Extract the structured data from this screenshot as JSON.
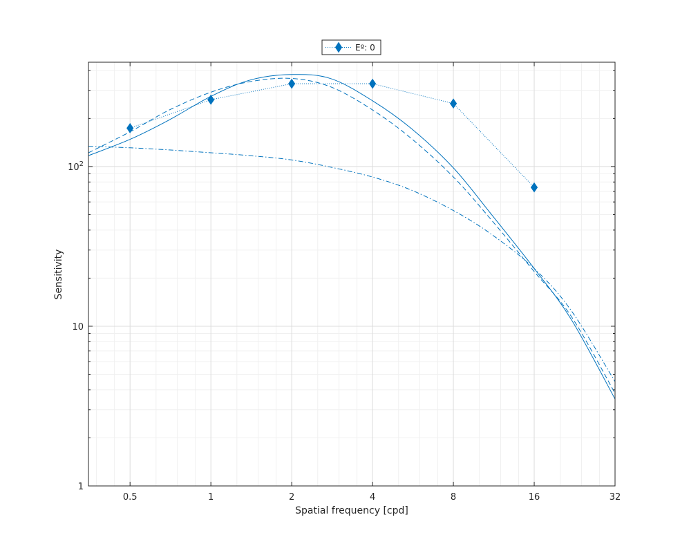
{
  "chart_data": {
    "type": "line",
    "xlabel": "Spatial frequency [cpd]",
    "ylabel": "Sensitivity",
    "x_scale": "log2",
    "y_scale": "log10",
    "xlim": [
      0.35,
      32
    ],
    "ylim": [
      1,
      450
    ],
    "x_ticks": [
      0.5,
      1,
      2,
      4,
      8,
      16,
      32
    ],
    "x_tick_labels": [
      "0.5",
      "1",
      "2",
      "4",
      "8",
      "16",
      "32"
    ],
    "y_ticks": [
      1,
      10,
      100
    ],
    "y_tick_labels": [
      "1",
      "10",
      "10^2"
    ],
    "grid": true,
    "minor_grid": true,
    "legend": {
      "placement": "top-center-outside",
      "entries": [
        "Eº: 0"
      ]
    },
    "series": [
      {
        "name": "Eº: 0",
        "style": "dotted",
        "marker": "diamond",
        "color": "#0072BD",
        "x": [
          0.5,
          1,
          2,
          4,
          8,
          16
        ],
        "y": [
          174,
          262,
          330,
          330,
          248,
          74
        ]
      },
      {
        "style": "solid",
        "color": "#0072BD",
        "x": [
          0.35,
          0.5,
          0.7,
          1,
          1.4,
          2,
          2.8,
          4,
          5.6,
          8,
          11,
          16,
          22,
          32
        ],
        "y": [
          117,
          148,
          196,
          275,
          348,
          377,
          355,
          258,
          172,
          98,
          51,
          23,
          11,
          3.5
        ]
      },
      {
        "style": "dashed",
        "color": "#0072BD",
        "x": [
          0.35,
          0.5,
          0.7,
          1,
          1.4,
          2,
          2.8,
          4,
          5.6,
          8,
          11,
          16,
          22,
          32
        ],
        "y": [
          122,
          165,
          226,
          292,
          340,
          356,
          315,
          226,
          149,
          86,
          47,
          22,
          11.5,
          3.8
        ]
      },
      {
        "style": "dashdot",
        "color": "#0072BD",
        "x": [
          0.35,
          0.5,
          0.7,
          1,
          1.4,
          2,
          2.8,
          4,
          5.6,
          8,
          11,
          16,
          22,
          32
        ],
        "y": [
          134,
          131,
          127,
          122,
          117,
          110,
          99,
          86,
          71,
          53,
          38,
          23,
          12.5,
          4.5
        ]
      }
    ]
  }
}
